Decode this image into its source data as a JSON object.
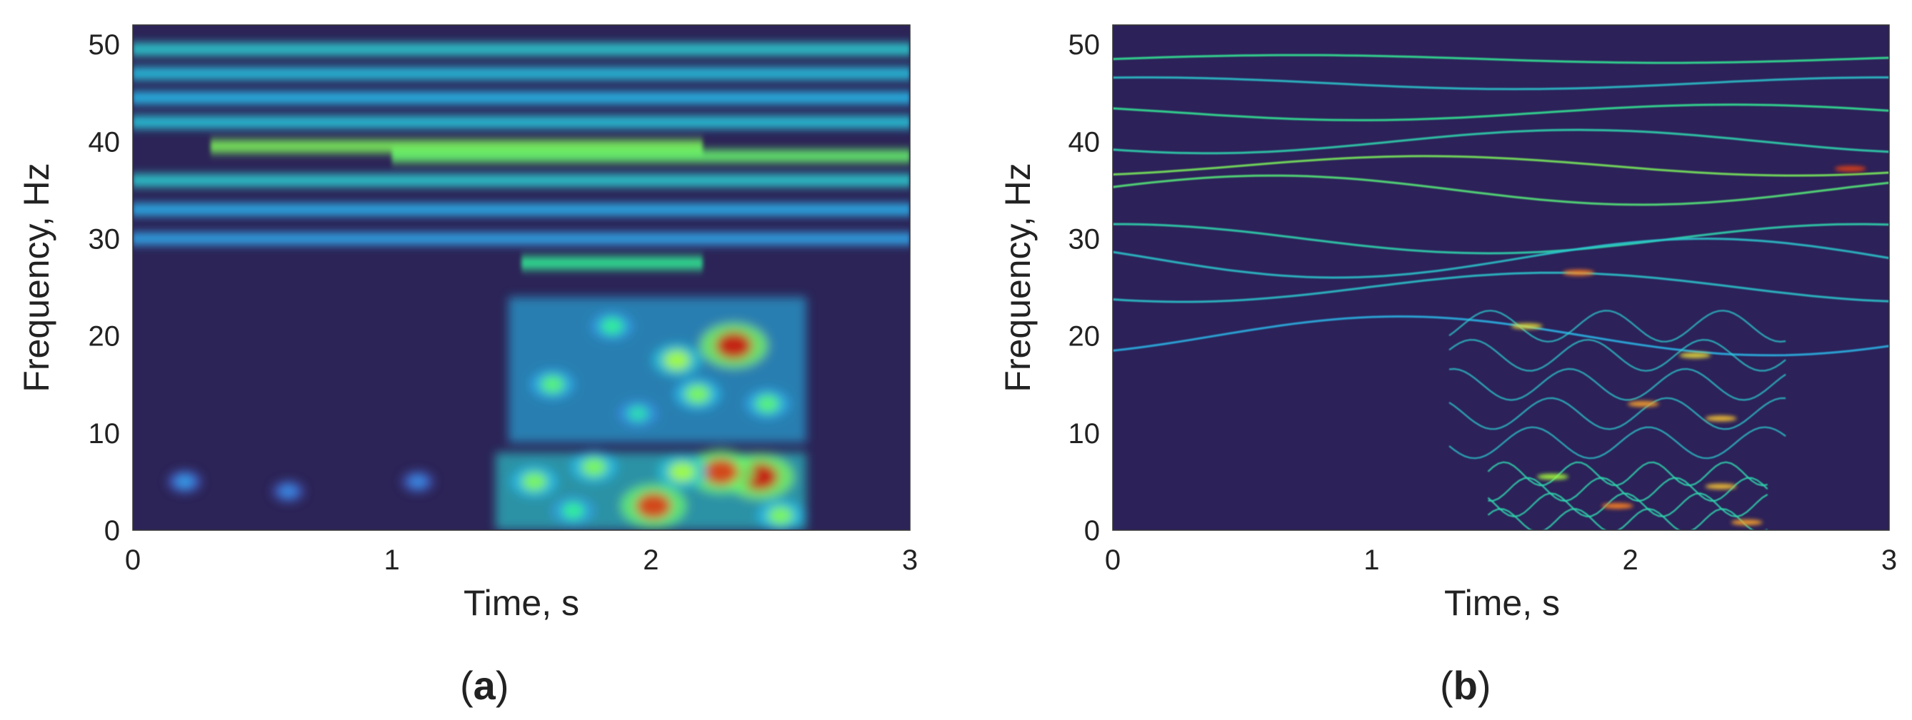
{
  "chart_data": [
    {
      "type": "heatmap",
      "panel_label_open": "(",
      "panel_label_letter": "a",
      "panel_label_close": ")",
      "xlabel": "Time, s",
      "ylabel": "Frequency, Hz",
      "xlim": [
        0,
        3
      ],
      "ylim": [
        0,
        52
      ],
      "xticks": [
        0,
        1,
        2,
        3
      ],
      "yticks": [
        0,
        10,
        20,
        30,
        40,
        50
      ],
      "colormap": "turbo",
      "background": "#2c2457",
      "grid": false,
      "bands": [
        {
          "f": 49.5,
          "t0": 0.0,
          "t1": 3.0,
          "intensity": 0.35
        },
        {
          "f": 47.0,
          "t0": 0.0,
          "t1": 3.0,
          "intensity": 0.32
        },
        {
          "f": 44.5,
          "t0": 0.0,
          "t1": 3.0,
          "intensity": 0.3
        },
        {
          "f": 42.0,
          "t0": 0.0,
          "t1": 3.0,
          "intensity": 0.33
        },
        {
          "f": 39.5,
          "t0": 0.3,
          "t1": 2.2,
          "intensity": 0.55
        },
        {
          "f": 38.5,
          "t0": 1.0,
          "t1": 3.0,
          "intensity": 0.52
        },
        {
          "f": 36.0,
          "t0": 0.0,
          "t1": 3.0,
          "intensity": 0.35
        },
        {
          "f": 33.0,
          "t0": 0.0,
          "t1": 3.0,
          "intensity": 0.28
        },
        {
          "f": 30.0,
          "t0": 0.0,
          "t1": 3.0,
          "intensity": 0.26
        },
        {
          "f": 27.5,
          "t0": 1.5,
          "t1": 2.2,
          "intensity": 0.45
        }
      ],
      "blobs": [
        {
          "t": 2.32,
          "f": 19.0,
          "intensity": 1.0
        },
        {
          "t": 2.1,
          "f": 17.5,
          "intensity": 0.6
        },
        {
          "t": 2.18,
          "f": 14.0,
          "intensity": 0.55
        },
        {
          "t": 1.62,
          "f": 15.0,
          "intensity": 0.5
        },
        {
          "t": 1.85,
          "f": 21.0,
          "intensity": 0.45
        },
        {
          "t": 2.45,
          "f": 13.0,
          "intensity": 0.5
        },
        {
          "t": 1.95,
          "f": 12.0,
          "intensity": 0.4
        },
        {
          "t": 2.42,
          "f": 5.5,
          "intensity": 1.0
        },
        {
          "t": 2.27,
          "f": 6.0,
          "intensity": 0.95
        },
        {
          "t": 2.01,
          "f": 2.5,
          "intensity": 0.95
        },
        {
          "t": 1.55,
          "f": 5.0,
          "intensity": 0.55
        },
        {
          "t": 1.78,
          "f": 6.5,
          "intensity": 0.55
        },
        {
          "t": 2.12,
          "f": 6.0,
          "intensity": 0.6
        },
        {
          "t": 1.7,
          "f": 2.0,
          "intensity": 0.45
        },
        {
          "t": 2.5,
          "f": 1.5,
          "intensity": 0.55
        },
        {
          "t": 0.2,
          "f": 5.0,
          "intensity": 0.25
        },
        {
          "t": 0.6,
          "f": 4.0,
          "intensity": 0.22
        },
        {
          "t": 1.1,
          "f": 5.0,
          "intensity": 0.22
        }
      ]
    },
    {
      "type": "heatmap",
      "panel_label_open": "(",
      "panel_label_letter": "b",
      "panel_label_close": ")",
      "xlabel": "Time, s",
      "ylabel": "Frequency, Hz",
      "xlim": [
        0,
        3
      ],
      "ylim": [
        0,
        52
      ],
      "xticks": [
        0,
        1,
        2,
        3
      ],
      "yticks": [
        0,
        10,
        20,
        30,
        40,
        50
      ],
      "colormap": "turbo",
      "background": "#2c2159",
      "grid": false,
      "ridges": [
        {
          "f": 48.5,
          "amp": 0.4,
          "intensity": 0.45
        },
        {
          "f": 46.0,
          "amp": 0.6,
          "intensity": 0.35
        },
        {
          "f": 43.0,
          "amp": 0.8,
          "intensity": 0.45
        },
        {
          "f": 40.0,
          "amp": 1.2,
          "intensity": 0.4
        },
        {
          "f": 37.5,
          "amp": 1.0,
          "intensity": 0.55
        },
        {
          "f": 35.0,
          "amp": 1.5,
          "intensity": 0.5
        },
        {
          "f": 30.0,
          "amp": 1.5,
          "intensity": 0.4
        },
        {
          "f": 28.0,
          "amp": 2.0,
          "intensity": 0.35
        },
        {
          "f": 25.0,
          "amp": 1.5,
          "intensity": 0.35
        },
        {
          "f": 20.0,
          "amp": 2.0,
          "intensity": 0.3
        }
      ],
      "hotspots": [
        {
          "t": 2.85,
          "f": 37.2,
          "intensity": 0.95
        },
        {
          "t": 1.8,
          "f": 26.5,
          "intensity": 0.85
        },
        {
          "t": 1.6,
          "f": 21.0,
          "intensity": 0.7
        },
        {
          "t": 2.25,
          "f": 18.0,
          "intensity": 0.7
        },
        {
          "t": 2.05,
          "f": 13.0,
          "intensity": 0.8
        },
        {
          "t": 2.35,
          "f": 11.5,
          "intensity": 0.75
        },
        {
          "t": 1.95,
          "f": 2.5,
          "intensity": 0.85
        },
        {
          "t": 2.35,
          "f": 4.5,
          "intensity": 0.75
        },
        {
          "t": 2.45,
          "f": 0.8,
          "intensity": 0.8
        },
        {
          "t": 1.7,
          "f": 5.5,
          "intensity": 0.6
        }
      ]
    }
  ]
}
